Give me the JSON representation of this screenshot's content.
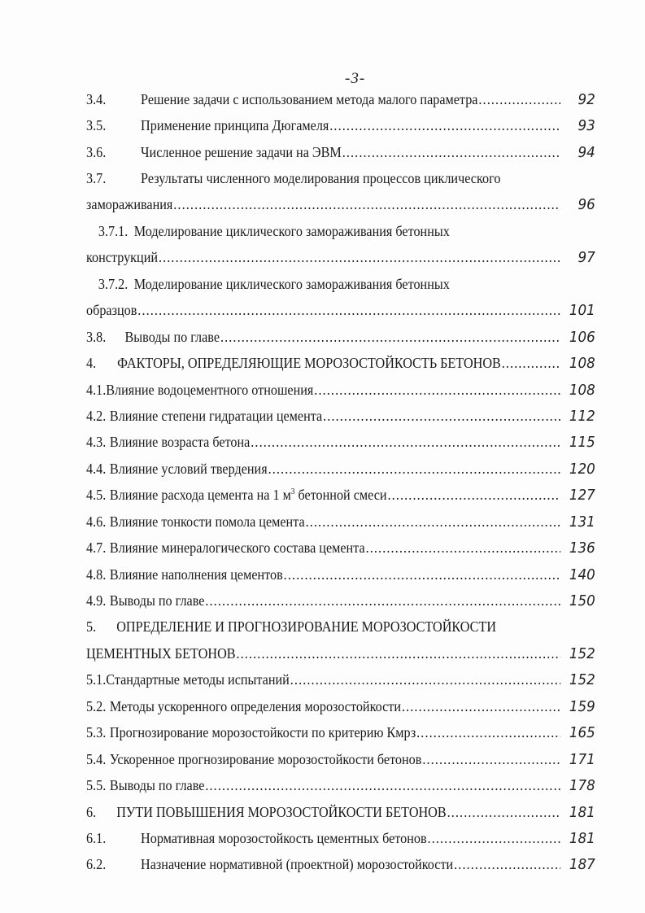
{
  "page_number": "-3-",
  "toc": [
    {
      "num": "3.4.",
      "text": "Решение задачи с использованием метода малого параметра",
      "page": "92"
    },
    {
      "num": "3.5.",
      "text": "Применение  принципа Дюгамеля",
      "page": "93"
    },
    {
      "num": "3.6.",
      "text": "Численное решение задачи на ЭВМ",
      "page": "94"
    },
    {
      "num": "3.7.",
      "text": "Результаты численного моделирования процессов циклического",
      "page": ""
    },
    {
      "num": "",
      "text": "замораживания",
      "page": "96"
    },
    {
      "num": "3.7.1.",
      "text": "Моделирование циклического замораживания бетонных",
      "page": ""
    },
    {
      "num": "",
      "text": "конструкций",
      "page": "97"
    },
    {
      "num": "3.7.2.",
      "text": "Моделирование циклического замораживания бетонных",
      "page": ""
    },
    {
      "num": "",
      "text": "образцов",
      "page": "101"
    },
    {
      "num": "3.8.",
      "text": "Выводы по главе",
      "page": "106"
    },
    {
      "num": "4.",
      "text": "ФАКТОРЫ, ОПРЕДЕЛЯЮЩИЕ МОРОЗОСТОЙКОСТЬ БЕТОНОВ",
      "page": "108"
    },
    {
      "num": "4.1.",
      "text": "Влияние водоцементного отношения",
      "page": "108"
    },
    {
      "num": "4.2.",
      "text": "Влияние степени гидратации цемента",
      "page": "112"
    },
    {
      "num": "4.3.",
      "text": "Влияние возраста бетона",
      "page": "115"
    },
    {
      "num": "4.4.",
      "text": "Влияние условий твердения",
      "page": "120"
    },
    {
      "num": "4.5.",
      "text": "Влияние расхода цемента на 1 м",
      "sup": "3",
      "text2": " бетонной смеси",
      "page": "127"
    },
    {
      "num": "4.6.",
      "text": "Влияние тонкости помола цемента",
      "page": "131"
    },
    {
      "num": "4.7.",
      "text": "Влияние минералогического состава цемента",
      "page": "136"
    },
    {
      "num": "4.8.",
      "text": "Влияние наполнения цементов",
      "page": "140"
    },
    {
      "num": "4.9.",
      "text": "Выводы по главе",
      "page": "150"
    },
    {
      "num": "5.",
      "text": "ОПРЕДЕЛЕНИЕ И ПРОГНОЗИРОВАНИЕ МОРОЗОСТОЙКОСТИ",
      "page": ""
    },
    {
      "num": "",
      "text": "ЦЕМЕНТНЫХ БЕТОНОВ",
      "page": "152"
    },
    {
      "num": "5.1.",
      "text": "Стандартные методы испытаний",
      "page": "152"
    },
    {
      "num": "5.2.",
      "text": "Методы ускоренного определения морозостойкости",
      "page": "159"
    },
    {
      "num": "5.3.",
      "text": "Прогнозирование морозостойкости по критерию Кмрз",
      "page": "165"
    },
    {
      "num": "5.4.",
      "text": "Ускоренное прогнозирование морозостойкости бетонов",
      "page": "171"
    },
    {
      "num": "5.5.",
      "text": "Выводы по главе",
      "page": "178"
    },
    {
      "num": "6.",
      "text": "ПУТИ ПОВЫШЕНИЯ МОРОЗОСТОЙКОСТИ БЕТОНОВ",
      "page": "181"
    },
    {
      "num": "6.1.",
      "text": "Нормативная морозостойкость цементных бетонов",
      "page": "181"
    },
    {
      "num": "6.2.",
      "text": "Назначение нормативной (проектной) морозостойкости",
      "page": "187"
    }
  ]
}
